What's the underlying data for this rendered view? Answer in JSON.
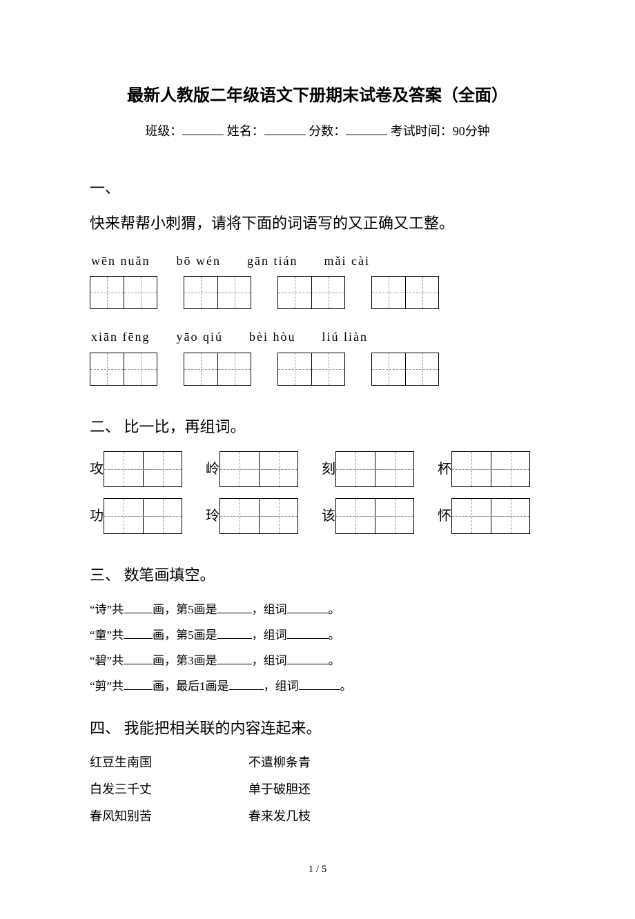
{
  "title": "最新人教版二年级语文下册期末试卷及答案（全面）",
  "info": {
    "class_label": "班级：",
    "name_label": "姓名：",
    "score_label": "分数：",
    "time_label": "考试时间：90分钟"
  },
  "section1": {
    "num": "一、",
    "instruction": "快来帮帮小刺猬，请将下面的词语写的又正确又工整。",
    "row1_pinyin": [
      "wēn nuǎn",
      "bō wén",
      "gān tián",
      "mǎi cài"
    ],
    "row2_pinyin": [
      "xiān fēng",
      "yāo qiú",
      "bèi hòu",
      "liú liàn"
    ]
  },
  "section2": {
    "heading": "二、 比一比，再组词。",
    "row1": [
      "攻",
      "岭",
      "刻",
      "杯"
    ],
    "row2": [
      "功",
      "玲",
      "该",
      "怀"
    ]
  },
  "section3": {
    "heading": "三、 数笔画填空。",
    "lines": [
      {
        "char": "诗",
        "pre": "“",
        "mid1": "”共",
        "mid2": "画，第5画是",
        "mid3": "，组词",
        "end": "。"
      },
      {
        "char": "童",
        "pre": "“",
        "mid1": "”共",
        "mid2": "画，第5画是",
        "mid3": "，组词",
        "end": "。"
      },
      {
        "char": "碧",
        "pre": "“",
        "mid1": "”共",
        "mid2": "画，第3画是",
        "mid3": "，组词",
        "end": "。"
      },
      {
        "char": "剪",
        "pre": "“",
        "mid1": "”共",
        "mid2": "画，最后1画是",
        "mid3": "，组词",
        "end": "。"
      }
    ]
  },
  "section4": {
    "heading": "四、 我能把相关联的内容连起来。",
    "pairs": [
      {
        "left": "红豆生南国",
        "right": "不遣柳条青"
      },
      {
        "left": "白发三千丈",
        "right": "单于破胆还"
      },
      {
        "left": "春风知别苦",
        "right": "春来发几枝"
      }
    ]
  },
  "page_num": "1 / 5"
}
